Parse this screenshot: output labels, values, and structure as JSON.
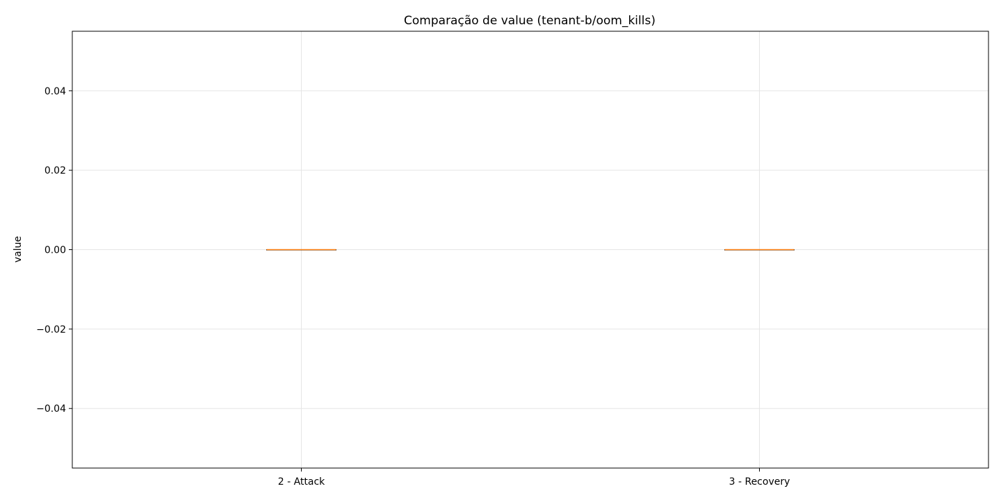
{
  "chart_data": {
    "type": "box",
    "title": "Comparação de value (tenant-b/oom_kills)",
    "xlabel": "",
    "ylabel": "value",
    "categories": [
      "2 - Attack",
      "3 - Recovery"
    ],
    "boxes": [
      {
        "category": "2 - Attack",
        "min": 0,
        "q1": 0,
        "median": 0,
        "q3": 0,
        "max": 0
      },
      {
        "category": "3 - Recovery",
        "min": 0,
        "q1": 0,
        "median": 0,
        "q3": 0,
        "max": 0
      }
    ],
    "ylim": [
      -0.055,
      0.055
    ],
    "yticks": [
      -0.04,
      -0.02,
      0.0,
      0.02,
      0.04
    ],
    "ytick_labels": [
      "−0.04",
      "−0.02",
      "0.00",
      "0.02",
      "0.04"
    ],
    "grid": true,
    "colors": {
      "box_edge": "#000000",
      "median": "#ff7f0e",
      "grid": "#e5e5e5"
    }
  }
}
